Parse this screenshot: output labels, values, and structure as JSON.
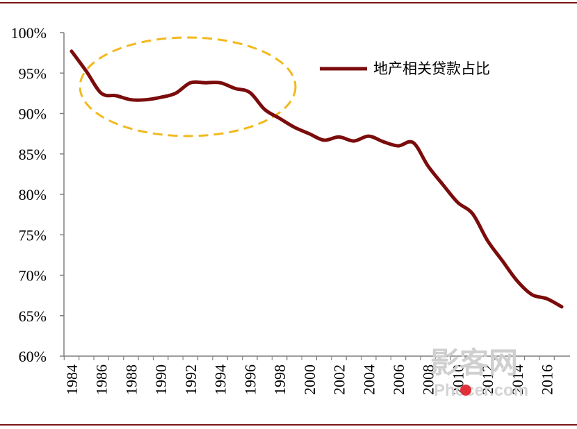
{
  "colors": {
    "rule": "#7a1414",
    "series": "#7b0c0c",
    "highlight": "#f2b91c",
    "axis": "#7f7f7f",
    "watermark": "#cfcfcf",
    "watermark_dot": "#e0303a"
  },
  "chart_data": {
    "type": "line",
    "x": [
      1984,
      1985,
      1986,
      1987,
      1988,
      1989,
      1990,
      1991,
      1992,
      1993,
      1994,
      1995,
      1996,
      1997,
      1998,
      1999,
      2000,
      2001,
      2002,
      2003,
      2004,
      2005,
      2006,
      2007,
      2008,
      2009,
      2010,
      2011,
      2012,
      2013,
      2014,
      2015,
      2016,
      2017
    ],
    "x_tick_labels": [
      "1984",
      "1986",
      "1988",
      "1990",
      "1992",
      "1994",
      "1996",
      "1998",
      "2000",
      "2002",
      "2004",
      "2006",
      "2008",
      "2010",
      "2012",
      "2014",
      "2016"
    ],
    "series": [
      {
        "name": "地产相关贷款占比",
        "values": [
          97.7,
          95.2,
          92.5,
          92.2,
          91.7,
          91.7,
          92.0,
          92.5,
          93.8,
          93.8,
          93.8,
          93.1,
          92.6,
          90.5,
          89.4,
          88.3,
          87.5,
          86.7,
          87.1,
          86.6,
          87.2,
          86.5,
          86.0,
          86.4,
          83.5,
          81.2,
          79.0,
          77.6,
          74.3,
          71.8,
          69.3,
          67.6,
          67.1,
          66.1
        ]
      }
    ],
    "ylim": [
      60,
      100
    ],
    "y_ticks": [
      60,
      65,
      70,
      75,
      80,
      85,
      90,
      95,
      100
    ],
    "y_tick_labels": [
      "60%",
      "65%",
      "70%",
      "75%",
      "80%",
      "85%",
      "90%",
      "95%",
      "100%"
    ],
    "legend_position": "top-right",
    "annotation": "dashed ellipse highlighting 1984-1997",
    "grid": false
  },
  "watermark": {
    "text_cn": "影客网",
    "text_en": "Phocer.com"
  }
}
